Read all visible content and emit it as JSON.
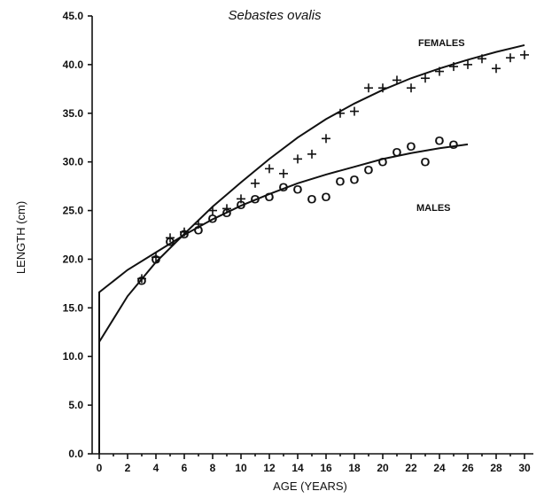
{
  "chart_data": {
    "type": "scatter",
    "title": "Sebastes ovalis",
    "xlabel": "AGE (YEARS)",
    "ylabel": "LENGTH (cm)",
    "xlim": [
      -0.5,
      30.5
    ],
    "ylim": [
      0,
      45
    ],
    "x_ticks": [
      0,
      2,
      4,
      6,
      8,
      10,
      12,
      14,
      16,
      18,
      20,
      22,
      24,
      26,
      28,
      30
    ],
    "y_ticks": [
      0,
      5,
      10,
      15,
      20,
      25,
      30,
      35,
      40,
      45
    ],
    "y_tick_labels": [
      "0.0",
      "5.0",
      "10.0",
      "15.0",
      "20.0",
      "25.0",
      "30.0",
      "35.0",
      "40.0",
      "45.0"
    ],
    "grid": false,
    "series": [
      {
        "name": "FEMALES",
        "marker": "+",
        "x": [
          3,
          4,
          5,
          6,
          7,
          8,
          9,
          10,
          11,
          12,
          13,
          14,
          15,
          16,
          17,
          18,
          19,
          20,
          21,
          22,
          23,
          24,
          25,
          26,
          27,
          28,
          29,
          30
        ],
        "y": [
          18.0,
          20.2,
          22.2,
          22.8,
          23.6,
          25.0,
          25.2,
          26.2,
          27.8,
          29.3,
          28.8,
          30.3,
          30.8,
          32.4,
          35.0,
          35.2,
          37.6,
          37.6,
          38.4,
          37.6,
          38.6,
          39.3,
          39.8,
          40.0,
          40.6,
          39.6,
          40.7,
          41.0
        ]
      },
      {
        "name": "MALES",
        "marker": "O",
        "x": [
          3,
          4,
          5,
          6,
          7,
          8,
          9,
          10,
          11,
          12,
          13,
          14,
          15,
          16,
          17,
          18,
          19,
          20,
          21,
          22,
          23,
          24,
          25
        ],
        "y": [
          17.8,
          20.0,
          21.8,
          22.6,
          23.0,
          24.2,
          24.8,
          25.6,
          26.2,
          26.4,
          27.4,
          27.2,
          26.2,
          26.4,
          28.0,
          28.2,
          29.2,
          30.0,
          31.0,
          31.6,
          30.0,
          32.2,
          31.8
        ]
      }
    ],
    "curves": [
      {
        "series": "FEMALES",
        "x": [
          0,
          2,
          4,
          6,
          8,
          10,
          12,
          14,
          16,
          18,
          20,
          22,
          24,
          26,
          28,
          30
        ],
        "y": [
          11.5,
          16.2,
          19.7,
          22.6,
          25.4,
          27.9,
          30.3,
          32.5,
          34.4,
          36.0,
          37.4,
          38.6,
          39.6,
          40.5,
          41.3,
          42.0
        ]
      },
      {
        "series": "MALES",
        "x": [
          0,
          2,
          4,
          6,
          8,
          10,
          12,
          14,
          16,
          18,
          20,
          22,
          24,
          26
        ],
        "y": [
          16.6,
          18.9,
          20.7,
          22.5,
          24.1,
          25.5,
          26.7,
          27.8,
          28.7,
          29.5,
          30.3,
          30.9,
          31.4,
          31.8
        ]
      }
    ],
    "series_labels": {
      "females": "FEMALES",
      "males": "MALES"
    },
    "colors": {
      "ink": "#111111",
      "background": "#ffffff"
    }
  }
}
